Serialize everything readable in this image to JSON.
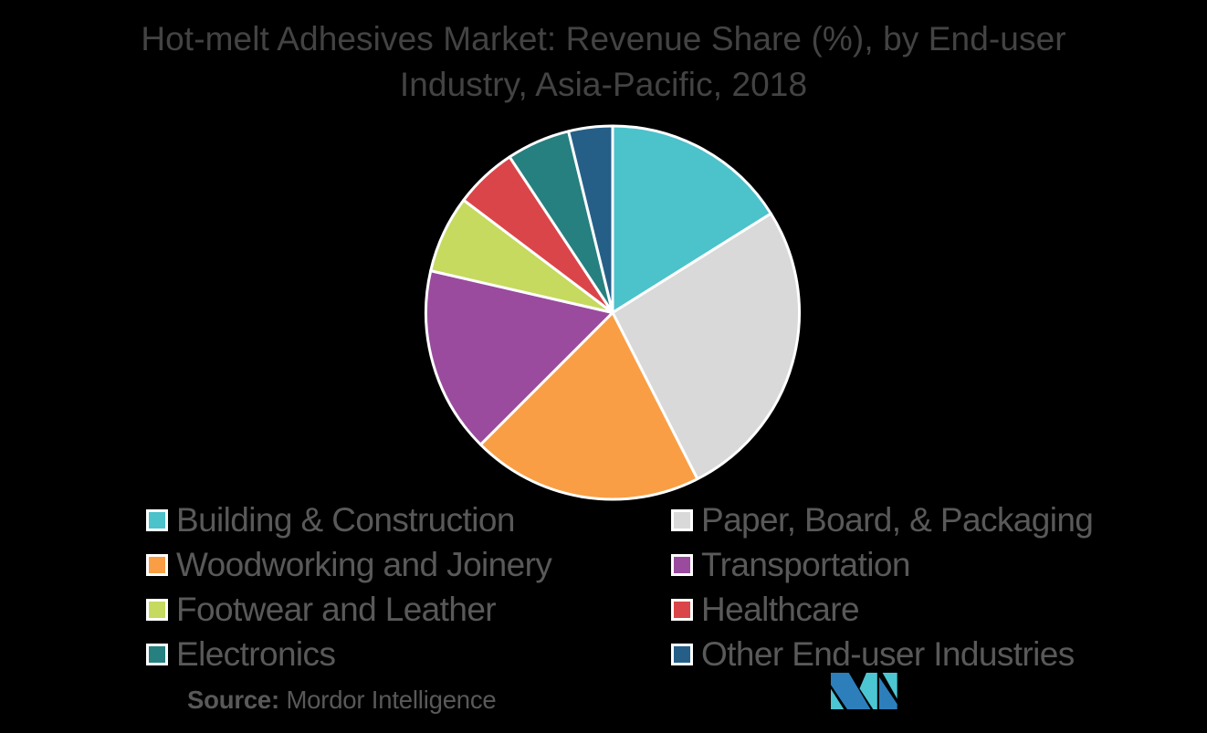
{
  "background_color": "#000000",
  "title_lines": [
    "Hot-melt Adhesives Market: Revenue Share (%), by End-user",
    "Industry, Asia-Pacific, 2018"
  ],
  "chart_data": {
    "type": "pie",
    "title": "Hot-melt Adhesives Market: Revenue Share (%), by End-user Industry, Asia-Pacific, 2018",
    "unit": "percent",
    "start_angle_deg": 0,
    "direction": "clockwise",
    "legend_position": "bottom",
    "slice_border_color": "#FFFFFF",
    "series": [
      {
        "label": "Building & Construction",
        "value": 16.1,
        "color": "#4CC2CB"
      },
      {
        "label": "Paper, Board, & Packaging",
        "value": 26.4,
        "color": "#D9D9D9"
      },
      {
        "label": "Woodworking and Joinery",
        "value": 20.0,
        "color": "#F99E45"
      },
      {
        "label": "Transportation",
        "value": 16.1,
        "color": "#9A4B9E"
      },
      {
        "label": "Footwear and Leather",
        "value": 6.7,
        "color": "#C5DA5F"
      },
      {
        "label": "Healthcare",
        "value": 5.4,
        "color": "#DA4549"
      },
      {
        "label": "Electronics",
        "value": 5.5,
        "color": "#26807F"
      },
      {
        "label": "Other End-user Industries",
        "value": 3.8,
        "color": "#255F88"
      }
    ]
  },
  "source": {
    "label": "Source:",
    "value": "Mordor Intelligence"
  },
  "logo": {
    "name": "mordor-intelligence-logo",
    "blue": "#2D7FBB",
    "teal": "#4DC6D3"
  },
  "colors": {
    "title_text": "#434343",
    "legend_text": "#595959",
    "source_text": "#595959"
  }
}
